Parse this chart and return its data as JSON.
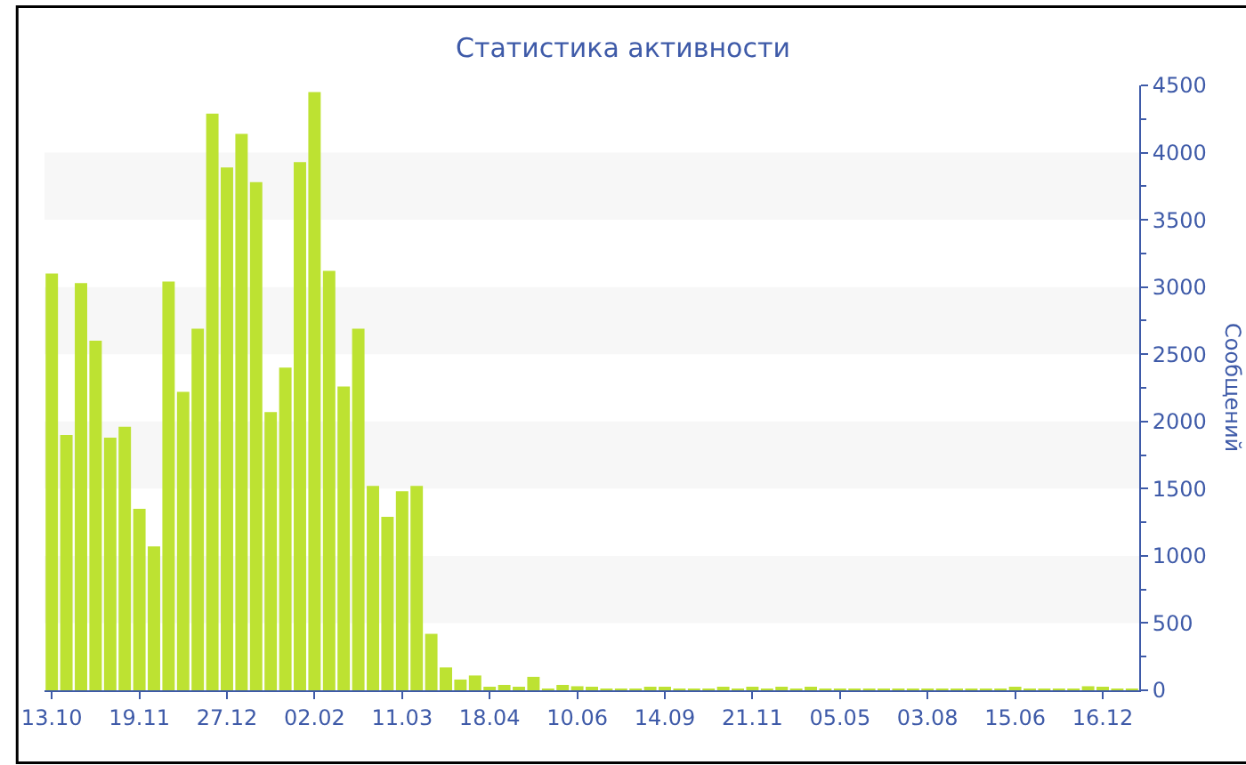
{
  "chart_data": {
    "type": "bar",
    "title": "Статистика активности",
    "ylabel": "Сообщений",
    "categories": [
      "13.10",
      null,
      null,
      null,
      null,
      null,
      "19.11",
      null,
      null,
      null,
      null,
      null,
      "27.12",
      null,
      null,
      null,
      null,
      null,
      "02.02",
      null,
      null,
      null,
      null,
      null,
      "11.03",
      null,
      null,
      null,
      null,
      null,
      "18.04",
      null,
      null,
      null,
      null,
      null,
      "10.06",
      null,
      null,
      null,
      null,
      null,
      "14.09",
      null,
      null,
      null,
      null,
      null,
      "21.11",
      null,
      null,
      null,
      null,
      null,
      "05.05",
      null,
      null,
      null,
      null,
      null,
      "03.08",
      null,
      null,
      null,
      null,
      null,
      "15.06",
      null,
      null,
      null,
      null,
      null,
      "16.12",
      null,
      null
    ],
    "values": [
      3100,
      1900,
      3030,
      2600,
      1880,
      1960,
      1350,
      1070,
      3040,
      2220,
      2690,
      4290,
      3890,
      4140,
      3780,
      2070,
      2400,
      3930,
      4450,
      3120,
      2260,
      2690,
      1520,
      1290,
      1480,
      1520,
      420,
      170,
      80,
      110,
      20,
      40,
      20,
      100,
      10,
      40,
      30,
      20,
      10,
      10,
      10,
      20,
      20,
      10,
      10,
      10,
      20,
      10,
      20,
      10,
      20,
      10,
      20,
      10,
      10,
      10,
      10,
      10,
      10,
      10,
      10,
      10,
      10,
      10,
      10,
      10,
      20,
      10,
      10,
      10,
      10,
      30,
      20,
      10,
      10
    ],
    "color": "#bde232",
    "ylim": [
      0,
      4500
    ],
    "yticks": [
      0,
      500,
      1000,
      1500,
      2000,
      2500,
      3000,
      3500,
      4000,
      4500
    ],
    "bands": [
      {
        "axis": "y",
        "from": 500,
        "to": 1000,
        "color": "#f7f7f7"
      },
      {
        "axis": "y",
        "from": 1500,
        "to": 2000,
        "color": "#f7f7f7"
      },
      {
        "axis": "y",
        "from": 2500,
        "to": 3000,
        "color": "#f7f7f7"
      },
      {
        "axis": "y",
        "from": 3500,
        "to": 4000,
        "color": "#f7f7f7"
      }
    ],
    "grid": false
  }
}
